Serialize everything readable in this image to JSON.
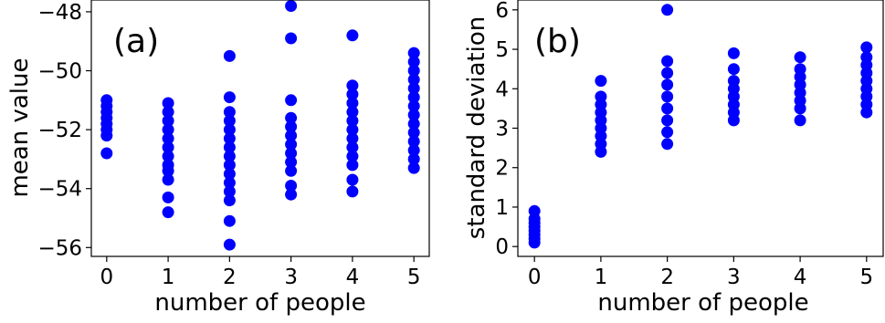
{
  "chart_data": [
    {
      "type": "scatter",
      "panel_label": "(a)",
      "xlabel": "number of people",
      "ylabel": "mean value",
      "xlim": [
        -0.25,
        5.25
      ],
      "ylim": [
        -56.3,
        -47.6
      ],
      "xticks": [
        0,
        1,
        2,
        3,
        4,
        5
      ],
      "yticks": [
        -56,
        -54,
        -52,
        -50,
        -48
      ],
      "xtick_labels": [
        "0",
        "1",
        "2",
        "3",
        "4",
        "5"
      ],
      "ytick_labels": [
        "−56",
        "−54",
        "−52",
        "−50",
        "−48"
      ],
      "grid": false,
      "color": "#0000ff",
      "series": [
        {
          "x": 0,
          "values": [
            -51.0,
            -51.2,
            -51.4,
            -51.6,
            -51.8,
            -52.0,
            -52.2,
            -52.8
          ]
        },
        {
          "x": 1,
          "values": [
            -51.1,
            -51.4,
            -51.7,
            -52.0,
            -52.3,
            -52.6,
            -52.9,
            -53.2,
            -53.4,
            -53.7,
            -54.3,
            -54.8
          ]
        },
        {
          "x": 2,
          "values": [
            -49.5,
            -50.9,
            -51.4,
            -51.7,
            -52.0,
            -52.3,
            -52.6,
            -52.9,
            -53.2,
            -53.5,
            -53.8,
            -54.1,
            -54.4,
            -55.1,
            -55.9
          ]
        },
        {
          "x": 3,
          "values": [
            -47.8,
            -48.9,
            -51.0,
            -51.6,
            -51.9,
            -52.2,
            -52.5,
            -52.8,
            -53.1,
            -53.4,
            -53.9,
            -54.2
          ]
        },
        {
          "x": 4,
          "values": [
            -48.8,
            -50.5,
            -50.8,
            -51.1,
            -51.4,
            -51.7,
            -52.0,
            -52.3,
            -52.6,
            -52.9,
            -53.2,
            -53.7,
            -54.1
          ]
        },
        {
          "x": 5,
          "values": [
            -49.4,
            -49.7,
            -50.0,
            -50.3,
            -50.6,
            -50.9,
            -51.2,
            -51.5,
            -51.8,
            -52.1,
            -52.4,
            -52.7,
            -53.0,
            -53.3
          ]
        }
      ]
    },
    {
      "type": "scatter",
      "panel_label": "(b)",
      "xlabel": "number of people",
      "ylabel": "standard deviation",
      "xlim": [
        -0.25,
        5.25
      ],
      "ylim": [
        -0.25,
        6.25
      ],
      "xticks": [
        0,
        1,
        2,
        3,
        4,
        5
      ],
      "yticks": [
        0,
        1,
        2,
        3,
        4,
        5,
        6
      ],
      "xtick_labels": [
        "0",
        "1",
        "2",
        "3",
        "4",
        "5"
      ],
      "ytick_labels": [
        "0",
        "1",
        "2",
        "3",
        "4",
        "5",
        "6"
      ],
      "grid": false,
      "color": "#0000ff",
      "series": [
        {
          "x": 0,
          "values": [
            0.1,
            0.2,
            0.3,
            0.4,
            0.5,
            0.6,
            0.7,
            0.9
          ]
        },
        {
          "x": 1,
          "values": [
            2.4,
            2.6,
            2.8,
            3.0,
            3.2,
            3.4,
            3.6,
            3.8,
            4.2
          ]
        },
        {
          "x": 2,
          "values": [
            2.6,
            2.9,
            3.2,
            3.5,
            3.8,
            4.1,
            4.4,
            4.7,
            6.0
          ]
        },
        {
          "x": 3,
          "values": [
            3.2,
            3.4,
            3.6,
            3.8,
            4.0,
            4.2,
            4.5,
            4.9
          ]
        },
        {
          "x": 4,
          "values": [
            3.2,
            3.5,
            3.7,
            3.9,
            4.1,
            4.3,
            4.5,
            4.8
          ]
        },
        {
          "x": 5,
          "values": [
            3.4,
            3.6,
            3.8,
            4.0,
            4.2,
            4.4,
            4.6,
            4.8,
            5.05
          ]
        }
      ]
    }
  ]
}
